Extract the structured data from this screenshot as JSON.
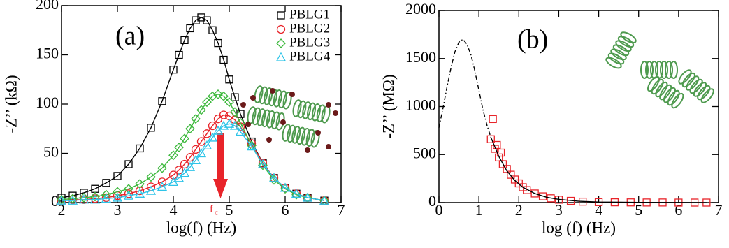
{
  "chart_data": [
    {
      "type": "line",
      "xlabel": "log(f) (Hz)",
      "ylabel": "-Z’’ (kΩ)",
      "annotations": [
        "(a)",
        "f",
        "c"
      ],
      "xlim": [
        2,
        7
      ],
      "xticks": [
        2,
        3,
        4,
        5,
        6,
        7
      ],
      "ylim": [
        0,
        200
      ],
      "yticks": [
        0,
        50,
        100,
        150,
        200
      ],
      "legend": "upper right",
      "x": [
        2.0,
        2.2,
        2.4,
        2.6,
        2.8,
        3.0,
        3.2,
        3.4,
        3.6,
        3.8,
        4.0,
        4.1,
        4.2,
        4.3,
        4.4,
        4.5,
        4.6,
        4.7,
        4.8,
        4.9,
        5.0,
        5.1,
        5.2,
        5.4,
        5.6,
        5.8,
        6.0,
        6.2,
        6.4,
        6.7
      ],
      "series": [
        {
          "name": "PBLG1",
          "color": "#000000",
          "marker": "square",
          "mode": "lines+markers",
          "values": [
            5,
            7,
            10,
            14,
            20,
            27,
            39,
            55,
            76,
            103,
            135,
            150,
            165,
            177,
            185,
            188,
            185,
            175,
            162,
            145,
            125,
            107,
            90,
            62,
            40,
            25,
            15,
            9,
            5,
            2
          ]
        },
        {
          "name": "PBLG2",
          "color": "#e8242a",
          "marker": "circle",
          "mode": "lines+markers",
          "values": [
            2,
            3,
            3,
            4,
            5,
            7,
            9,
            12,
            16,
            21,
            28,
            33,
            39,
            46,
            54,
            62,
            70,
            78,
            85,
            89,
            88,
            84,
            77,
            60,
            40,
            25,
            15,
            9,
            5,
            2
          ]
        },
        {
          "name": "PBLG3",
          "color": "#3cb83c",
          "marker": "diamond",
          "mode": "lines+markers",
          "values": [
            3,
            4,
            5,
            6,
            8,
            11,
            14,
            19,
            26,
            35,
            48,
            56,
            65,
            75,
            85,
            94,
            102,
            108,
            110,
            108,
            102,
            92,
            81,
            58,
            38,
            23,
            14,
            8,
            5,
            2
          ]
        },
        {
          "name": "PBLG4",
          "color": "#2ec4e8",
          "marker": "triangle",
          "mode": "lines+markers",
          "values": [
            2,
            2,
            3,
            3,
            4,
            5,
            7,
            9,
            12,
            16,
            21,
            25,
            30,
            36,
            43,
            50,
            58,
            66,
            73,
            78,
            80,
            78,
            72,
            57,
            39,
            25,
            15,
            9,
            5,
            2
          ]
        }
      ]
    },
    {
      "type": "line",
      "xlabel": "log (f) (Hz)",
      "ylabel": "-Z’’ (MΩ)",
      "annotations": [
        "(b)"
      ],
      "xlim": [
        0,
        7
      ],
      "xticks": [
        0,
        1,
        2,
        3,
        4,
        5,
        6,
        7
      ],
      "ylim": [
        0,
        2000
      ],
      "yticks": [
        0,
        500,
        1000,
        1500,
        2000
      ],
      "series": [
        {
          "color": "#000000",
          "mode": "lines",
          "dash": "dashdot",
          "x": [
            0,
            0.1,
            0.2,
            0.3,
            0.4,
            0.5,
            0.6,
            0.7,
            0.8,
            0.9,
            1.0,
            1.1,
            1.2,
            1.3
          ],
          "values": [
            780,
            980,
            1200,
            1400,
            1570,
            1670,
            1700,
            1650,
            1540,
            1370,
            1170,
            970,
            810,
            680
          ]
        },
        {
          "color": "#e8242a",
          "marker": "square",
          "mode": "markers",
          "x": [
            1.3,
            1.35,
            1.4,
            1.45,
            1.5,
            1.55,
            1.6,
            1.7,
            1.8,
            1.9,
            2.0,
            2.1,
            2.2,
            2.4,
            2.6,
            2.8,
            3.0,
            3.3,
            3.6,
            4.0,
            4.4,
            4.8,
            5.2,
            5.6,
            6.0,
            6.4,
            6.7
          ],
          "values": [
            660,
            870,
            560,
            600,
            470,
            520,
            400,
            350,
            290,
            240,
            200,
            160,
            130,
            95,
            65,
            45,
            30,
            18,
            10,
            5,
            3,
            2,
            1,
            1,
            0,
            0,
            0
          ]
        },
        {
          "color": "#000000",
          "mode": "lines",
          "dash": "solid",
          "x": [
            1.3,
            1.5,
            1.7,
            1.9,
            2.1,
            2.4,
            2.7,
            3.0,
            3.5,
            4.0,
            5.0,
            6.0,
            6.7
          ],
          "values": [
            680,
            480,
            330,
            230,
            160,
            95,
            55,
            33,
            14,
            6,
            2,
            1,
            0
          ]
        }
      ]
    }
  ]
}
